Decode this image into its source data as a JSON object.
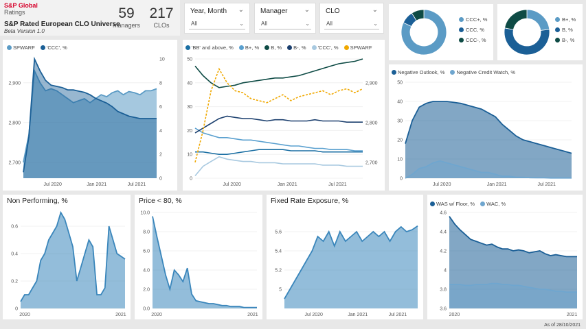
{
  "header": {
    "brand": "S&P Global",
    "brand_sub": "Ratings",
    "title": "S&P Rated European CLO Universe",
    "version": "Beta Version 1.0",
    "kpis": [
      {
        "value": "59",
        "label": "Managers"
      },
      {
        "value": "217",
        "label": "CLOs"
      }
    ]
  },
  "slicers": [
    {
      "title": "Year, Month",
      "value": "All"
    },
    {
      "title": "Manager",
      "value": "All"
    },
    {
      "title": "CLO",
      "value": "All"
    }
  ],
  "footer": {
    "as_of": "As of 28/10/2021"
  },
  "colors": {
    "dark_teal": "#0e4b45",
    "mid_blue": "#4a8fbf",
    "light_blue": "#a8c9e0",
    "navy": "#1b4f7a",
    "orange": "#f0a800",
    "steel": "#2e7fb0"
  },
  "chart_data": [
    {
      "id": "spwarf_ccc",
      "type": "area",
      "title": "",
      "series": [
        {
          "name": "SPWARF",
          "axis": "left",
          "color": "#5b9bc5",
          "values": [
            2700,
            2770,
            2930,
            2900,
            2880,
            2885,
            2880,
            2870,
            2860,
            2850,
            2855,
            2860,
            2850,
            2860,
            2870,
            2865,
            2875,
            2880,
            2870,
            2878,
            2875,
            2870,
            2880,
            2880,
            2885
          ]
        },
        {
          "name": "'CCC', %",
          "axis": "right",
          "color": "#1b5f96",
          "values": [
            0.5,
            3.5,
            10.0,
            9.0,
            8.2,
            7.8,
            7.7,
            7.6,
            7.4,
            7.4,
            7.3,
            7.2,
            7.0,
            6.7,
            6.5,
            6.3,
            6.0,
            5.6,
            5.4,
            5.2,
            5.1,
            5.0,
            5.0,
            5.0,
            5.0
          ]
        }
      ],
      "x_labels": [
        "Jul 2020",
        "Jan 2021",
        "Jul 2021"
      ],
      "y_left": {
        "min": 2660,
        "max": 2960,
        "ticks": [
          2700,
          2800,
          2900
        ]
      },
      "y_right": {
        "min": 0,
        "max": 10,
        "ticks": [
          0,
          2,
          4,
          6,
          8,
          10
        ]
      }
    },
    {
      "id": "rating_buckets",
      "type": "line",
      "title": "",
      "series": [
        {
          "name": "'BB' and above, %",
          "color": "#1b6fa3",
          "axis": "left",
          "values": [
            11,
            11,
            10.5,
            10,
            10,
            10.5,
            11,
            11.5,
            12,
            12,
            12,
            12,
            11.5,
            11.5,
            11.5,
            11.5,
            11,
            11,
            11,
            11,
            11,
            11
          ]
        },
        {
          "name": "B+, %",
          "color": "#5aa0cf",
          "axis": "left",
          "values": [
            21,
            19,
            18,
            17,
            17,
            16.5,
            16,
            16,
            15.5,
            15,
            14.5,
            14,
            13.5,
            13.5,
            13,
            12.5,
            12.5,
            12,
            12,
            12,
            11.5,
            11.5
          ]
        },
        {
          "name": "B, %",
          "color": "#0e4b45",
          "axis": "left",
          "values": [
            47,
            43,
            40,
            38,
            38.5,
            39,
            40,
            40.5,
            41,
            41.5,
            42,
            42,
            42.5,
            43,
            44,
            45,
            46,
            47,
            48,
            48.5,
            49,
            50
          ]
        },
        {
          "name": "B-, %",
          "color": "#1b3f6e",
          "axis": "left",
          "values": [
            19,
            21,
            23,
            25,
            26,
            25.5,
            25,
            25,
            24.5,
            24,
            24.5,
            24.5,
            24,
            24,
            24,
            24.5,
            24,
            24,
            24,
            23.5,
            23.5,
            23.5
          ]
        },
        {
          "name": "'CCC', %",
          "color": "#a8c9e0",
          "axis": "left",
          "values": [
            1,
            5,
            7,
            9,
            8,
            7.5,
            7,
            7,
            6.5,
            6.5,
            6.5,
            6,
            6,
            6,
            6,
            6,
            5.5,
            5.5,
            5.5,
            5,
            5,
            5
          ]
        },
        {
          "name": "SPWARF",
          "color": "#f0a800",
          "axis": "right",
          "dashed": true,
          "values": [
            2700,
            2780,
            2880,
            2935,
            2900,
            2880,
            2875,
            2860,
            2855,
            2850,
            2860,
            2870,
            2855,
            2865,
            2870,
            2875,
            2880,
            2870,
            2880,
            2885,
            2875,
            2885
          ]
        }
      ],
      "x_labels": [
        "Jul 2020",
        "Jan 2021",
        "Jul 2021"
      ],
      "y_left": {
        "min": 0,
        "max": 50,
        "ticks": [
          0,
          10,
          20,
          30,
          40,
          50
        ]
      },
      "y_right": {
        "min": 2660,
        "max": 2960,
        "ticks": [
          2700,
          2800,
          2900
        ]
      }
    },
    {
      "id": "ccc_donut",
      "type": "pie",
      "title": "",
      "series": [
        {
          "name": "CCC+, %",
          "color": "#5b9bc5",
          "value": 82
        },
        {
          "name": "CCC, %",
          "color": "#1b5f96",
          "value": 9
        },
        {
          "name": "CCC-, %",
          "color": "#0e4b45",
          "value": 9
        }
      ]
    },
    {
      "id": "b_donut",
      "type": "pie",
      "title": "",
      "series": [
        {
          "name": "B+, %",
          "color": "#5b9bc5",
          "value": 23
        },
        {
          "name": "B, %",
          "color": "#1b5f96",
          "value": 55
        },
        {
          "name": "B-, %",
          "color": "#0e4b45",
          "value": 22
        }
      ]
    },
    {
      "id": "outlook",
      "type": "area",
      "title": "",
      "series": [
        {
          "name": "Negative Outlook, %",
          "color": "#1b5f96",
          "values": [
            18,
            30,
            37,
            39,
            40,
            40,
            40,
            39.5,
            39,
            38,
            37,
            36,
            34,
            32,
            28,
            25,
            22,
            20,
            19,
            18,
            17,
            16,
            15,
            14,
            13
          ]
        },
        {
          "name": "Negative Credit Watch, %",
          "color": "#6fa6cf",
          "values": [
            0,
            2,
            5,
            6,
            8,
            9,
            8,
            7,
            6,
            5,
            4,
            3,
            3,
            2,
            1,
            1,
            0.5,
            0.5,
            0.3,
            0.2,
            0.2,
            0.1,
            0.1,
            0.1,
            0.1
          ]
        }
      ],
      "x_labels": [
        "Jul 2020",
        "Jan 2021",
        "Jul 2021"
      ],
      "y_left": {
        "min": 0,
        "max": 50,
        "ticks": [
          0,
          10,
          20,
          30,
          40,
          50
        ]
      }
    },
    {
      "id": "non_performing",
      "type": "area",
      "title": "Non Performing, %",
      "series": [
        {
          "name": "Non Performing, %",
          "color": "#3a86bb",
          "values": [
            0.05,
            0.1,
            0.1,
            0.15,
            0.2,
            0.35,
            0.4,
            0.5,
            0.55,
            0.6,
            0.7,
            0.65,
            0.55,
            0.45,
            0.2,
            0.3,
            0.4,
            0.5,
            0.45,
            0.1,
            0.1,
            0.15,
            0.6,
            0.5,
            0.4,
            0.38,
            0.36
          ]
        }
      ],
      "x_labels": [
        "2020",
        "2021"
      ],
      "y_left": {
        "min": 0,
        "max": 0.7,
        "ticks": [
          0,
          0.2,
          0.4,
          0.6
        ]
      }
    },
    {
      "id": "price_lt_80",
      "type": "area",
      "title": "Price < 80, %",
      "series": [
        {
          "name": "Price < 80, %",
          "color": "#3a86bb",
          "values": [
            9.6,
            7.5,
            5.5,
            3.5,
            2.0,
            4.0,
            3.5,
            2.8,
            4.2,
            1.5,
            0.8,
            0.7,
            0.6,
            0.5,
            0.5,
            0.4,
            0.3,
            0.3,
            0.2,
            0.2,
            0.2,
            0.1,
            0.1,
            0.1,
            0.1
          ]
        }
      ],
      "x_labels": [
        "2020",
        "2021"
      ],
      "y_left": {
        "min": 0,
        "max": 10,
        "ticks": [
          0,
          2,
          4,
          6,
          8,
          10
        ]
      }
    },
    {
      "id": "fixed_rate",
      "type": "area",
      "title": "Fixed Rate Exposure, %",
      "series": [
        {
          "name": "Fixed Rate Exposure, %",
          "color": "#3a86bb",
          "values": [
            4.9,
            5.0,
            5.1,
            5.2,
            5.3,
            5.4,
            5.55,
            5.5,
            5.6,
            5.45,
            5.6,
            5.5,
            5.55,
            5.6,
            5.5,
            5.55,
            5.6,
            5.55,
            5.6,
            5.5,
            5.6,
            5.65,
            5.6,
            5.62,
            5.66
          ]
        }
      ],
      "x_labels": [
        "Jul 2020",
        "Jan 2021",
        "Jul 2021"
      ],
      "y_left": {
        "min": 4.8,
        "max": 5.8,
        "ticks": [
          5.0,
          5.2,
          5.4,
          5.6
        ]
      }
    },
    {
      "id": "was_wac",
      "type": "area",
      "title": "",
      "series": [
        {
          "name": "WAS w/ Floor, %",
          "color": "#1b5f96",
          "values": [
            4.56,
            4.48,
            4.42,
            4.37,
            4.32,
            4.3,
            4.28,
            4.26,
            4.27,
            4.24,
            4.22,
            4.22,
            4.2,
            4.21,
            4.2,
            4.18,
            4.19,
            4.2,
            4.17,
            4.15,
            4.16,
            4.15,
            4.14,
            4.14,
            4.14
          ]
        },
        {
          "name": "WAC, %",
          "color": "#6fa6cf",
          "values": [
            3.85,
            3.85,
            3.85,
            3.84,
            3.84,
            3.85,
            3.85,
            3.85,
            3.86,
            3.86,
            3.85,
            3.85,
            3.84,
            3.84,
            3.83,
            3.82,
            3.81,
            3.8,
            3.8,
            3.79,
            3.78,
            3.78,
            3.77,
            3.77,
            3.77
          ]
        }
      ],
      "x_labels": [
        "2020",
        "2021"
      ],
      "y_left": {
        "min": 3.6,
        "max": 4.6,
        "ticks": [
          3.6,
          3.8,
          4.0,
          4.2,
          4.4,
          4.6
        ]
      }
    }
  ]
}
